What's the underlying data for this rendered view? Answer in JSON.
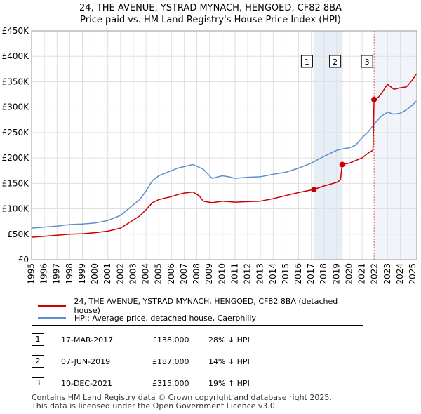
{
  "title_line1": "24, THE AVENUE, YSTRAD MYNACH, HENGOED, CF82 8BA",
  "title_line2": "Price paid vs. HM Land Registry's House Price Index (HPI)",
  "colors": {
    "price": "#cc0000",
    "hpi": "#5b8fd0",
    "band": "#e8eef8",
    "marker_line": "#e06060",
    "grid": "#e0e0e0"
  },
  "legend": {
    "price_label": "24, THE AVENUE, YSTRAD MYNACH, HENGOED, CF82 8BA (detached house)",
    "hpi_label": "HPI: Average price, detached house, Caerphilly"
  },
  "transactions": [
    {
      "num": "1",
      "date": "17-MAR-2017",
      "price": "£138,000",
      "hpi": "28% ↓ HPI"
    },
    {
      "num": "2",
      "date": "07-JUN-2019",
      "price": "£187,000",
      "hpi": "14% ↓ HPI"
    },
    {
      "num": "3",
      "date": "10-DEC-2021",
      "price": "£315,000",
      "hpi": "19% ↑ HPI"
    }
  ],
  "footer_line1": "Contains HM Land Registry data © Crown copyright and database right 2025.",
  "footer_line2": "This data is licensed under the Open Government Licence v3.0.",
  "chart_data": {
    "type": "line",
    "title": "24, THE AVENUE, YSTRAD MYNACH, HENGOED, CF82 8BA",
    "subtitle": "Price paid vs. HM Land Registry's House Price Index (HPI)",
    "xlim": [
      1995,
      2025.3
    ],
    "ylim": [
      0,
      450000
    ],
    "x_ticks": [
      "1995",
      "1996",
      "1997",
      "1998",
      "1999",
      "2000",
      "2001",
      "2002",
      "2003",
      "2004",
      "2005",
      "2006",
      "2007",
      "2008",
      "2009",
      "2010",
      "2011",
      "2012",
      "2013",
      "2014",
      "2015",
      "2016",
      "2017",
      "2018",
      "2019",
      "2020",
      "2021",
      "2022",
      "2023",
      "2024",
      "2025"
    ],
    "y_ticks": [
      {
        "value": 0,
        "label": "£0"
      },
      {
        "value": 50000,
        "label": "£50K"
      },
      {
        "value": 100000,
        "label": "£100K"
      },
      {
        "value": 150000,
        "label": "£150K"
      },
      {
        "value": 200000,
        "label": "£200K"
      },
      {
        "value": 250000,
        "label": "£250K"
      },
      {
        "value": 300000,
        "label": "£300K"
      },
      {
        "value": 350000,
        "label": "£350K"
      },
      {
        "value": 400000,
        "label": "£400K"
      },
      {
        "value": 450000,
        "label": "£450K"
      }
    ],
    "series": [
      {
        "name": "HPI: Average price, detached house, Caerphilly",
        "points": [
          [
            1995.0,
            62000
          ],
          [
            1996.0,
            64000
          ],
          [
            1997.0,
            66000
          ],
          [
            1998.0,
            69000
          ],
          [
            1999.0,
            70000
          ],
          [
            2000.0,
            72000
          ],
          [
            2001.0,
            77000
          ],
          [
            2002.0,
            87000
          ],
          [
            2003.0,
            108000
          ],
          [
            2003.5,
            118000
          ],
          [
            2004.0,
            135000
          ],
          [
            2004.5,
            155000
          ],
          [
            2005.0,
            165000
          ],
          [
            2005.5,
            170000
          ],
          [
            2006.0,
            175000
          ],
          [
            2006.5,
            180000
          ],
          [
            2007.0,
            183000
          ],
          [
            2007.7,
            187000
          ],
          [
            2008.5,
            178000
          ],
          [
            2009.2,
            160000
          ],
          [
            2010.0,
            165000
          ],
          [
            2010.5,
            163000
          ],
          [
            2011.0,
            160000
          ],
          [
            2012.0,
            162000
          ],
          [
            2013.0,
            163000
          ],
          [
            2014.0,
            168000
          ],
          [
            2015.0,
            172000
          ],
          [
            2016.0,
            180000
          ],
          [
            2017.0,
            190000
          ],
          [
            2018.0,
            203000
          ],
          [
            2019.0,
            215000
          ],
          [
            2019.5,
            218000
          ],
          [
            2020.0,
            220000
          ],
          [
            2020.5,
            225000
          ],
          [
            2021.0,
            240000
          ],
          [
            2021.5,
            252000
          ],
          [
            2022.0,
            268000
          ],
          [
            2022.5,
            282000
          ],
          [
            2023.0,
            290000
          ],
          [
            2023.5,
            286000
          ],
          [
            2024.0,
            288000
          ],
          [
            2024.5,
            295000
          ],
          [
            2025.0,
            305000
          ],
          [
            2025.25,
            312000
          ]
        ]
      },
      {
        "name": "24, THE AVENUE, YSTRAD MYNACH, HENGOED, CF82 8BA (detached house)",
        "points": [
          [
            1995.0,
            44000
          ],
          [
            1996.0,
            46000
          ],
          [
            1997.0,
            48000
          ],
          [
            1998.0,
            50000
          ],
          [
            1999.0,
            51000
          ],
          [
            2000.0,
            53000
          ],
          [
            2001.0,
            56000
          ],
          [
            2002.0,
            62000
          ],
          [
            2003.0,
            78000
          ],
          [
            2003.5,
            86000
          ],
          [
            2004.0,
            98000
          ],
          [
            2004.5,
            112000
          ],
          [
            2005.0,
            118000
          ],
          [
            2005.5,
            121000
          ],
          [
            2006.0,
            124000
          ],
          [
            2006.5,
            128000
          ],
          [
            2007.0,
            131000
          ],
          [
            2007.7,
            133000
          ],
          [
            2008.2,
            125000
          ],
          [
            2008.5,
            115000
          ],
          [
            2009.2,
            112000
          ],
          [
            2010.0,
            115000
          ],
          [
            2010.5,
            114000
          ],
          [
            2011.0,
            113000
          ],
          [
            2012.0,
            114000
          ],
          [
            2013.0,
            115000
          ],
          [
            2014.0,
            120000
          ],
          [
            2015.0,
            126000
          ],
          [
            2016.0,
            132000
          ],
          [
            2017.21,
            138000
          ],
          [
            2018.0,
            145000
          ],
          [
            2019.0,
            152000
          ],
          [
            2019.3,
            157000
          ],
          [
            2019.43,
            187000
          ],
          [
            2020.0,
            190000
          ],
          [
            2020.5,
            195000
          ],
          [
            2021.0,
            200000
          ],
          [
            2021.5,
            210000
          ],
          [
            2021.85,
            215000
          ],
          [
            2021.94,
            315000
          ],
          [
            2022.3,
            320000
          ],
          [
            2022.6,
            330000
          ],
          [
            2023.0,
            345000
          ],
          [
            2023.5,
            335000
          ],
          [
            2024.0,
            338000
          ],
          [
            2024.5,
            340000
          ],
          [
            2025.0,
            355000
          ],
          [
            2025.25,
            365000
          ]
        ]
      }
    ],
    "sales": [
      {
        "num": "1",
        "x": 2017.21,
        "y": 138000
      },
      {
        "num": "2",
        "x": 2019.43,
        "y": 187000
      },
      {
        "num": "3",
        "x": 2021.94,
        "y": 315000
      }
    ],
    "legend_position": "below"
  }
}
